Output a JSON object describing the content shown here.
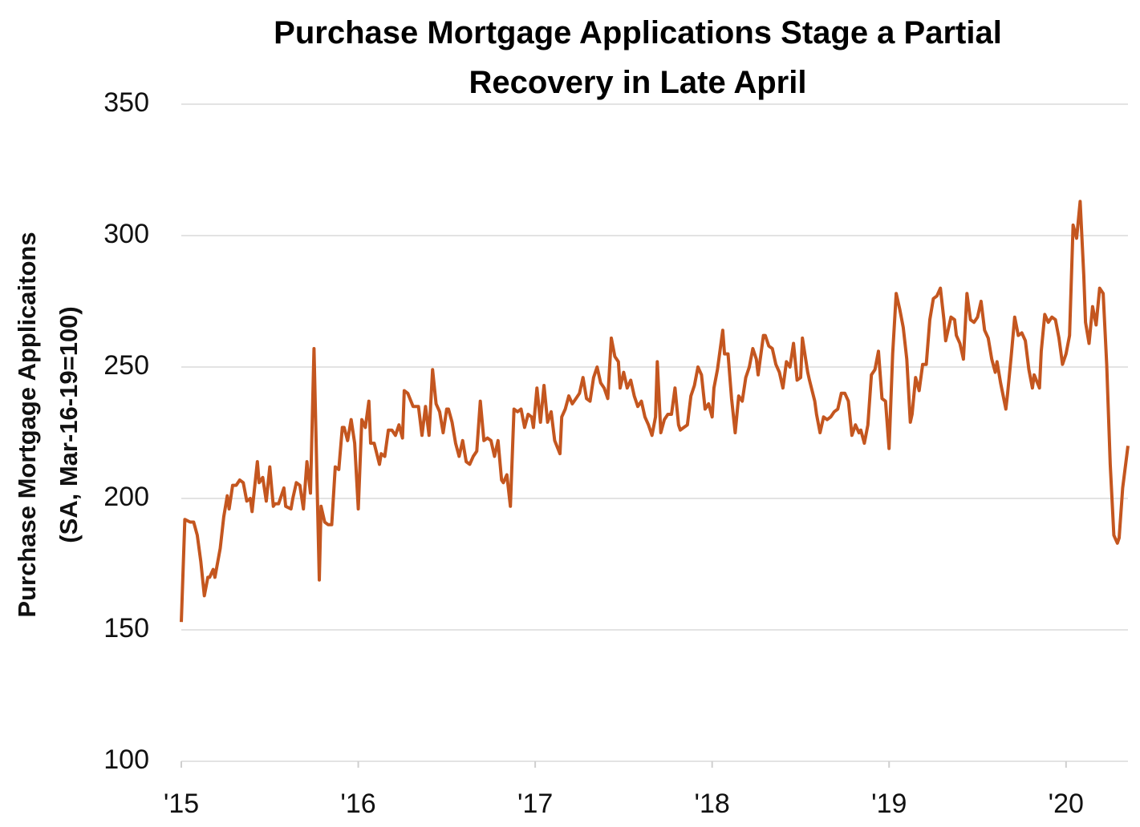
{
  "chart_data": {
    "type": "line",
    "title": "Purchase Mortgage Applications Stage a Partial Recovery in Late April",
    "ylabel": [
      "Purchase Mortgage  Applicaitons",
      "(SA, Mar-16-19=100)"
    ],
    "xlim": [
      2015,
      2020.35
    ],
    "xticks": [
      {
        "value": 2015,
        "label": "'15"
      },
      {
        "value": 2016,
        "label": "'16"
      },
      {
        "value": 2017,
        "label": "'17"
      },
      {
        "value": 2018,
        "label": "'18"
      },
      {
        "value": 2019,
        "label": "'19"
      },
      {
        "value": 2020,
        "label": "'20"
      }
    ],
    "ylim": [
      100,
      350
    ],
    "yticks": [
      100,
      150,
      200,
      250,
      300,
      350
    ],
    "grid": true,
    "x": [
      2015.0,
      2015.02,
      2015.05,
      2015.07,
      2015.09,
      2015.11,
      2015.13,
      2015.15,
      2015.16,
      2015.18,
      2015.19,
      2015.22,
      2015.24,
      2015.26,
      2015.27,
      2015.29,
      2015.31,
      2015.33,
      2015.35,
      2015.37,
      2015.39,
      2015.4,
      2015.43,
      2015.44,
      2015.46,
      2015.48,
      2015.5,
      2015.52,
      2015.53,
      2015.55,
      2015.58,
      2015.59,
      2015.62,
      2015.63,
      2015.65,
      2015.67,
      2015.69,
      2015.71,
      2015.73,
      2015.75,
      2015.78,
      2015.79,
      2015.81,
      2015.83,
      2015.85,
      2015.87,
      2015.89,
      2015.91,
      2015.92,
      2015.94,
      2015.96,
      2015.98,
      2016.0,
      2016.02,
      2016.04,
      2016.06,
      2016.07,
      2016.09,
      2016.12,
      2016.13,
      2016.15,
      2016.17,
      2016.19,
      2016.21,
      2016.23,
      2016.25,
      2016.26,
      2016.28,
      2016.31,
      2016.32,
      2016.34,
      2016.36,
      2016.38,
      2016.4,
      2016.42,
      2016.44,
      2016.46,
      2016.48,
      2016.5,
      2016.51,
      2016.53,
      2016.55,
      2016.57,
      2016.59,
      2016.61,
      2016.63,
      2016.65,
      2016.67,
      2016.69,
      2016.71,
      2016.73,
      2016.75,
      2016.77,
      2016.79,
      2016.81,
      2016.82,
      2016.84,
      2016.86,
      2016.88,
      2016.9,
      2016.92,
      2016.94,
      2016.96,
      2016.98,
      2016.99,
      2017.01,
      2017.03,
      2017.05,
      2017.07,
      2017.09,
      2017.11,
      2017.14,
      2017.15,
      2017.17,
      2017.19,
      2017.21,
      2017.23,
      2017.25,
      2017.27,
      2017.29,
      2017.31,
      2017.33,
      2017.35,
      2017.37,
      2017.39,
      2017.41,
      2017.43,
      2017.45,
      2017.47,
      2017.48,
      2017.5,
      2017.52,
      2017.54,
      2017.56,
      2017.58,
      2017.6,
      2017.62,
      2017.64,
      2017.66,
      2017.68,
      2017.69,
      2017.71,
      2017.73,
      2017.75,
      2017.77,
      2017.79,
      2017.81,
      2017.82,
      2017.84,
      2017.86,
      2017.88,
      2017.9,
      2017.92,
      2017.94,
      2017.96,
      2017.98,
      2018.0,
      2018.01,
      2018.03,
      2018.06,
      2018.07,
      2018.09,
      2018.11,
      2018.13,
      2018.15,
      2018.17,
      2018.19,
      2018.21,
      2018.23,
      2018.25,
      2018.26,
      2018.29,
      2018.3,
      2018.32,
      2018.34,
      2018.36,
      2018.38,
      2018.4,
      2018.42,
      2018.44,
      2018.46,
      2018.48,
      2018.5,
      2018.51,
      2018.54,
      2018.55,
      2018.58,
      2018.59,
      2018.61,
      2018.63,
      2018.65,
      2018.67,
      2018.69,
      2018.71,
      2018.73,
      2018.75,
      2018.77,
      2018.79,
      2018.81,
      2018.83,
      2018.84,
      2018.86,
      2018.88,
      2018.9,
      2018.92,
      2018.94,
      2018.96,
      2018.98,
      2019.0,
      2019.02,
      2019.04,
      2019.06,
      2019.08,
      2019.1,
      2019.12,
      2019.13,
      2019.15,
      2019.17,
      2019.19,
      2019.21,
      2019.23,
      2019.25,
      2019.27,
      2019.29,
      2019.31,
      2019.32,
      2019.35,
      2019.37,
      2019.38,
      2019.4,
      2019.42,
      2019.44,
      2019.46,
      2019.48,
      2019.5,
      2019.52,
      2019.54,
      2019.56,
      2019.58,
      2019.6,
      2019.61,
      2019.63,
      2019.66,
      2019.67,
      2019.69,
      2019.71,
      2019.73,
      2019.75,
      2019.77,
      2019.79,
      2019.81,
      2019.82,
      2019.85,
      2019.86,
      2019.88,
      2019.9,
      2019.92,
      2019.94,
      2019.96,
      2019.98,
      2020.0,
      2020.02,
      2020.04,
      2020.06,
      2020.08,
      2020.1,
      2020.11,
      2020.13,
      2020.15,
      2020.17,
      2020.19,
      2020.21,
      2020.23,
      2020.25,
      2020.27,
      2020.29,
      2020.3,
      2020.32,
      2020.35
    ],
    "series": [
      {
        "color": "#c4561f",
        "values": [
          153,
          192,
          191,
          191,
          186,
          176,
          163,
          170,
          170,
          173,
          170,
          181,
          193,
          201,
          196,
          205,
          205,
          207,
          206,
          199,
          200,
          195,
          214,
          206,
          208,
          199,
          212,
          197,
          198,
          198,
          204,
          197,
          196,
          200,
          206,
          205,
          196,
          214,
          202,
          257,
          169,
          197,
          191,
          190,
          190,
          212,
          211,
          227,
          227,
          222,
          230,
          221,
          196,
          230,
          227,
          237,
          221,
          221,
          213,
          217,
          216,
          226,
          226,
          224,
          228,
          223,
          241,
          240,
          235,
          235,
          235,
          224,
          235,
          224,
          249,
          236,
          233,
          225,
          234,
          234,
          229,
          221,
          216,
          222,
          214,
          213,
          216,
          218,
          237,
          222,
          223,
          222,
          216,
          222,
          207,
          206,
          209,
          197,
          234,
          233,
          234,
          227,
          232,
          231,
          227,
          242,
          229,
          243,
          229,
          233,
          222,
          217,
          231,
          234,
          239,
          236,
          238,
          240,
          246,
          238,
          237,
          246,
          250,
          244,
          242,
          238,
          261,
          254,
          252,
          242,
          248,
          242,
          245,
          239,
          235,
          237,
          231,
          228,
          224,
          231,
          252,
          225,
          230,
          232,
          232,
          242,
          228,
          226,
          227,
          228,
          239,
          243,
          250,
          247,
          234,
          236,
          231,
          242,
          249,
          264,
          255,
          255,
          238,
          225,
          239,
          237,
          246,
          250,
          257,
          253,
          247,
          262,
          262,
          258,
          257,
          251,
          248,
          242,
          252,
          250,
          259,
          245,
          246,
          261,
          248,
          245,
          237,
          232,
          225,
          231,
          230,
          231,
          233,
          234,
          240,
          240,
          237,
          224,
          228,
          225,
          226,
          221,
          228,
          247,
          249,
          256,
          238,
          237,
          219,
          255,
          278,
          272,
          265,
          253,
          229,
          232,
          246,
          241,
          251,
          251,
          268,
          276,
          277,
          280,
          268,
          260,
          269,
          268,
          262,
          259,
          253,
          278,
          268,
          267,
          269,
          275,
          264,
          261,
          253,
          248,
          252,
          244,
          234,
          240,
          254,
          269,
          262,
          263,
          260,
          249,
          242,
          247,
          242,
          256,
          270,
          267,
          269,
          268,
          261,
          251,
          255,
          262,
          304,
          299,
          313,
          285,
          267,
          259,
          273,
          266,
          280,
          278,
          251,
          213,
          186,
          183,
          185,
          204,
          220
        ]
      }
    ]
  }
}
